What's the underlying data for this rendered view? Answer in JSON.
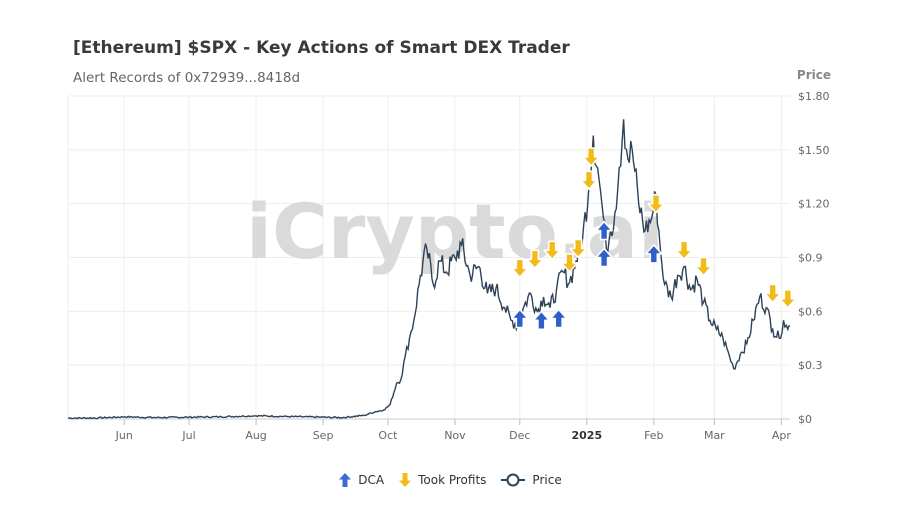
{
  "header": {
    "title": "[Ethereum] $SPX - Key Actions of Smart DEX Trader",
    "subtitle": "Alert Records of 0x72939...8418d"
  },
  "watermark": "iCrypto.ai",
  "colors": {
    "price_line": "#2e4257",
    "dca": "#2f5fc9",
    "took_profits": "#f2bb1a",
    "grid": "#eeeeee",
    "axis_text": "#666666"
  },
  "legend": [
    {
      "key": "dca",
      "label": "DCA",
      "icon": "arrow-up-icon"
    },
    {
      "key": "took_profits",
      "label": "Took Profits",
      "icon": "arrow-down-icon"
    },
    {
      "key": "price",
      "label": "Price",
      "icon": "line-circle-icon"
    }
  ],
  "chart_data": {
    "type": "line",
    "x_type": "date",
    "x_range": [
      "2024-05-06",
      "2025-04-05"
    ],
    "y_axis_title": "Price",
    "y_ticks": [
      "$0",
      "$0.3",
      "$0.6",
      "$0.9",
      "$1.20",
      "$1.50",
      "$1.80"
    ],
    "y_tick_values": [
      0,
      0.3,
      0.6,
      0.9,
      1.2,
      1.5,
      1.8
    ],
    "ylim": [
      0,
      1.8
    ],
    "x_ticks": [
      {
        "date": "2024-06-01",
        "label": "Jun",
        "bold": false
      },
      {
        "date": "2024-07-01",
        "label": "Jul",
        "bold": false
      },
      {
        "date": "2024-08-01",
        "label": "Aug",
        "bold": false
      },
      {
        "date": "2024-09-01",
        "label": "Sep",
        "bold": false
      },
      {
        "date": "2024-10-01",
        "label": "Oct",
        "bold": false
      },
      {
        "date": "2024-11-01",
        "label": "Nov",
        "bold": false
      },
      {
        "date": "2024-12-01",
        "label": "Dec",
        "bold": false
      },
      {
        "date": "2025-01-01",
        "label": "2025",
        "bold": true
      },
      {
        "date": "2025-02-01",
        "label": "Feb",
        "bold": false
      },
      {
        "date": "2025-03-01",
        "label": "Mar",
        "bold": false
      },
      {
        "date": "2025-04-01",
        "label": "Apr",
        "bold": false
      }
    ],
    "price_series": {
      "name": "Price",
      "points": [
        [
          "2024-05-06",
          0.005
        ],
        [
          "2024-05-20",
          0.006
        ],
        [
          "2024-06-01",
          0.012
        ],
        [
          "2024-06-15",
          0.008
        ],
        [
          "2024-07-01",
          0.01
        ],
        [
          "2024-07-15",
          0.012
        ],
        [
          "2024-08-01",
          0.018
        ],
        [
          "2024-08-15",
          0.014
        ],
        [
          "2024-09-01",
          0.01
        ],
        [
          "2024-09-10",
          0.008
        ],
        [
          "2024-09-20",
          0.02
        ],
        [
          "2024-09-25",
          0.04
        ],
        [
          "2024-09-29",
          0.05
        ],
        [
          "2024-10-02",
          0.08
        ],
        [
          "2024-10-05",
          0.2
        ],
        [
          "2024-10-07",
          0.22
        ],
        [
          "2024-10-09",
          0.35
        ],
        [
          "2024-10-11",
          0.45
        ],
        [
          "2024-10-13",
          0.55
        ],
        [
          "2024-10-16",
          0.8
        ],
        [
          "2024-10-19",
          0.95
        ],
        [
          "2024-10-22",
          0.75
        ],
        [
          "2024-10-25",
          0.88
        ],
        [
          "2024-10-28",
          0.82
        ],
        [
          "2024-11-01",
          0.9
        ],
        [
          "2024-11-04",
          0.97
        ],
        [
          "2024-11-08",
          0.8
        ],
        [
          "2024-11-12",
          0.85
        ],
        [
          "2024-11-16",
          0.7
        ],
        [
          "2024-11-20",
          0.73
        ],
        [
          "2024-11-24",
          0.62
        ],
        [
          "2024-11-27",
          0.55
        ],
        [
          "2024-11-30",
          0.52
        ],
        [
          "2024-12-03",
          0.63
        ],
        [
          "2024-12-06",
          0.7
        ],
        [
          "2024-12-09",
          0.6
        ],
        [
          "2024-12-12",
          0.68
        ],
        [
          "2024-12-15",
          0.62
        ],
        [
          "2024-12-18",
          0.72
        ],
        [
          "2024-12-21",
          0.82
        ],
        [
          "2024-12-24",
          0.76
        ],
        [
          "2024-12-27",
          0.88
        ],
        [
          "2024-12-30",
          1.0
        ],
        [
          "2025-01-02",
          1.3
        ],
        [
          "2025-01-04",
          1.58
        ],
        [
          "2025-01-06",
          1.4
        ],
        [
          "2025-01-08",
          1.2
        ],
        [
          "2025-01-10",
          0.95
        ],
        [
          "2025-01-12",
          1.05
        ],
        [
          "2025-01-14",
          1.15
        ],
        [
          "2025-01-16",
          1.4
        ],
        [
          "2025-01-18",
          1.67
        ],
        [
          "2025-01-20",
          1.45
        ],
        [
          "2025-01-22",
          1.5
        ],
        [
          "2025-01-25",
          1.2
        ],
        [
          "2025-01-28",
          1.05
        ],
        [
          "2025-01-31",
          1.12
        ],
        [
          "2025-02-02",
          1.25
        ],
        [
          "2025-02-04",
          0.95
        ],
        [
          "2025-02-06",
          0.75
        ],
        [
          "2025-02-09",
          0.68
        ],
        [
          "2025-02-12",
          0.8
        ],
        [
          "2025-02-15",
          0.85
        ],
        [
          "2025-02-18",
          0.72
        ],
        [
          "2025-02-21",
          0.78
        ],
        [
          "2025-02-24",
          0.65
        ],
        [
          "2025-02-27",
          0.55
        ],
        [
          "2025-03-02",
          0.5
        ],
        [
          "2025-03-05",
          0.45
        ],
        [
          "2025-03-08",
          0.35
        ],
        [
          "2025-03-10",
          0.28
        ],
        [
          "2025-03-13",
          0.36
        ],
        [
          "2025-03-16",
          0.42
        ],
        [
          "2025-03-19",
          0.55
        ],
        [
          "2025-03-22",
          0.68
        ],
        [
          "2025-03-25",
          0.62
        ],
        [
          "2025-03-28",
          0.5
        ],
        [
          "2025-03-31",
          0.45
        ],
        [
          "2025-04-02",
          0.55
        ],
        [
          "2025-04-04",
          0.5
        ],
        [
          "2025-04-05",
          0.52
        ]
      ]
    },
    "series": [
      {
        "name": "DCA",
        "direction": "up",
        "points": [
          [
            "2024-12-01",
            0.56
          ],
          [
            "2024-12-11",
            0.55
          ],
          [
            "2024-12-19",
            0.56
          ],
          [
            "2025-01-09",
            1.05
          ],
          [
            "2025-01-09",
            0.9
          ],
          [
            "2025-02-01",
            0.92
          ]
        ]
      },
      {
        "name": "Took Profits",
        "direction": "down",
        "points": [
          [
            "2024-12-01",
            0.84
          ],
          [
            "2024-12-08",
            0.89
          ],
          [
            "2024-12-16",
            0.94
          ],
          [
            "2024-12-24",
            0.87
          ],
          [
            "2024-12-28",
            0.95
          ],
          [
            "2025-01-02",
            1.33
          ],
          [
            "2025-01-03",
            1.46
          ],
          [
            "2025-02-02",
            1.2
          ],
          [
            "2025-02-15",
            0.94
          ],
          [
            "2025-02-24",
            0.85
          ],
          [
            "2025-03-28",
            0.7
          ],
          [
            "2025-04-04",
            0.67
          ]
        ]
      }
    ]
  }
}
